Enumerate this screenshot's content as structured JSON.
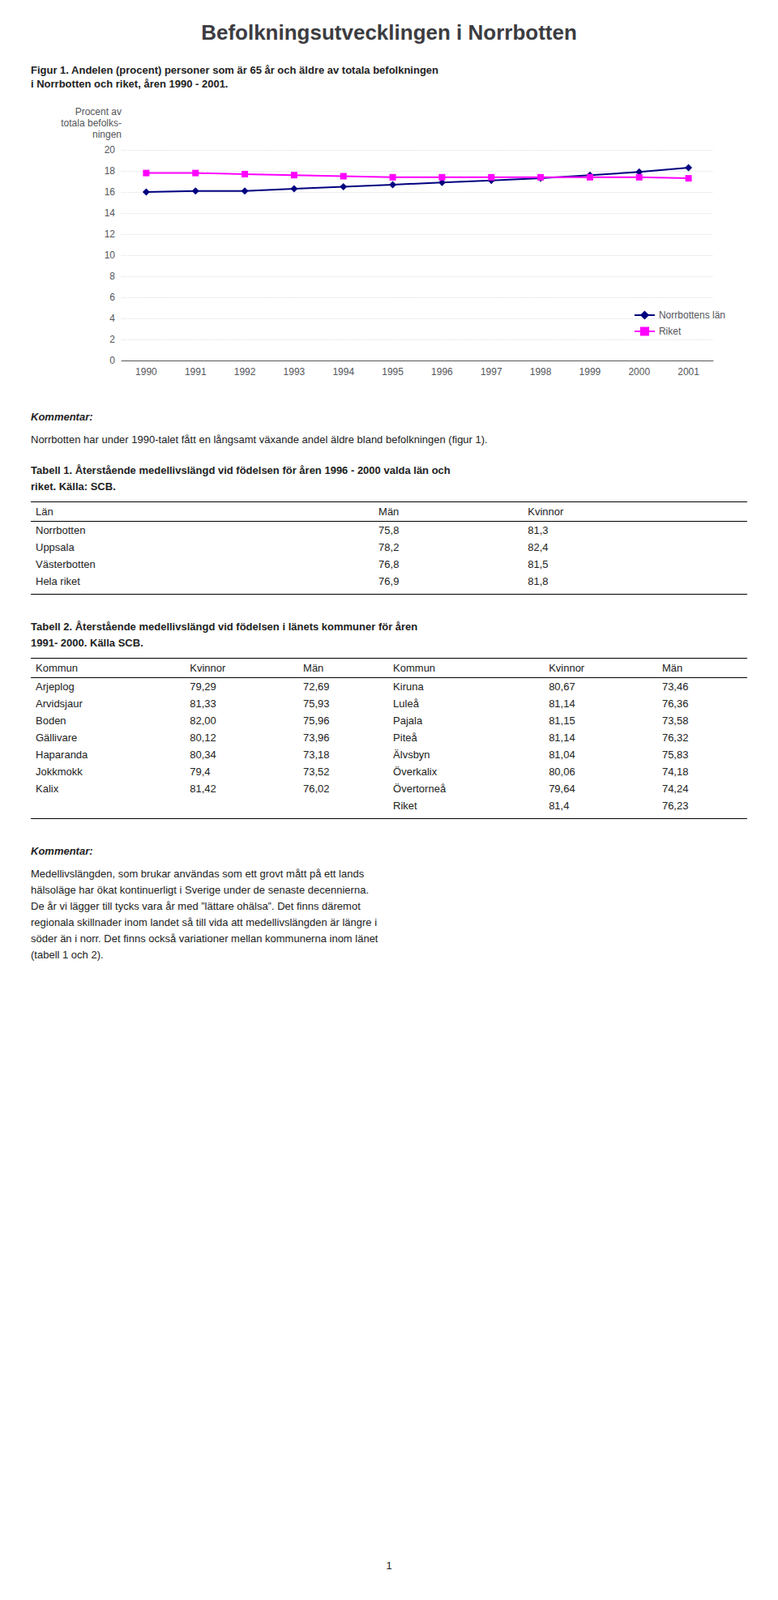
{
  "chart_data": {
    "type": "line",
    "title": "Befolkningsutvecklingen i Norrbotten",
    "ylabel": "Procent av\ntotala befolks-\nningen",
    "categories": [
      "1990",
      "1991",
      "1992",
      "1993",
      "1994",
      "1995",
      "1996",
      "1997",
      "1998",
      "1999",
      "2000",
      "2001"
    ],
    "series": [
      {
        "name": "Norrbottens län",
        "color": "#000080",
        "marker": "diamond",
        "line_style": "solid",
        "values": [
          16.0,
          16.1,
          16.1,
          16.3,
          16.5,
          16.7,
          16.9,
          17.1,
          17.3,
          17.6,
          17.9,
          18.3
        ]
      },
      {
        "name": "Riket",
        "color": "#FF00FF",
        "marker": "square",
        "line_style": "solid",
        "values": [
          17.8,
          17.8,
          17.7,
          17.6,
          17.5,
          17.4,
          17.4,
          17.4,
          17.4,
          17.4,
          17.4,
          17.3
        ]
      }
    ],
    "ylim": [
      0,
      20
    ],
    "yticks": [
      0,
      2,
      4,
      6,
      8,
      10,
      12,
      14,
      16,
      18,
      20
    ],
    "grid": true,
    "legend": "lower right",
    "annotations": [
      "Figur 1. Andelen (procent) personer som  är 65 år och äldre av totala befolkningen\ni Norrbotten och riket, åren 1990 - 2001.",
      "Kommentar:",
      "Norrbotten har under 1990-talet fått en långsamt växande andel äldre bland befolkningen (figur 1).",
      "Tabell 1. Återstående medellivslängd vid födelsen för åren 1996 - 2000 valda län och\nriket. Källa: SCB.",
      [
        [
          "Län",
          "Män",
          "Kvinnor"
        ],
        [
          "Norrbotten",
          "75,8",
          "81,3"
        ],
        [
          "Uppsala",
          "78,2",
          "82,4"
        ],
        [
          "Västerbotten",
          "76,8",
          "81,5"
        ],
        [
          "Hela riket",
          "76,9",
          "81,8"
        ]
      ],
      "Tabell 2. Återstående medellivslängd vid födelsen i länets kommuner för åren\n1991- 2000. Källa SCB.",
      [
        [
          "Kommun",
          "Kvinnor",
          "Män",
          "Kommun",
          "Kvinnor",
          "Män"
        ],
        [
          "Arjeplog",
          "79,29",
          "72,69",
          "Kiruna",
          "80,67",
          "73,46"
        ],
        [
          "Arvidsjaur",
          "81,33",
          "75,93",
          "Luleå",
          "81,14",
          "76,36"
        ],
        [
          "Boden",
          "82,00",
          "75,96",
          "Pajala",
          "81,15",
          "73,58"
        ],
        [
          "Gällivare",
          "80,12",
          "73,96",
          "Piteå",
          "81,14",
          "76,32"
        ],
        [
          "Haparanda",
          "80,34",
          "73,18",
          "Älvsbyn",
          "81,04",
          "75,83"
        ],
        [
          "Jokkmokk",
          "79,4",
          "73,52",
          "Överkalix",
          "80,06",
          "74,18"
        ],
        [
          "Kalix",
          "81,42",
          "76,02",
          "Övertorneå",
          "79,64",
          "74,24"
        ],
        [
          null,
          null,
          null,
          "Riket",
          "81,4",
          "76,23"
        ]
      ],
      "Kommentar:",
      "Medellivslängden, som brukar användas som ett grovt mått på ett lands\nhälsoläge har ökat kontinuerligt i Sverige under de senaste decennierna.\nDe år vi lägger till tycks vara år med ”lättare ohälsa”. Det finns däremot\nregionala skillnader inom landet så till vida att medellivslängden är längre i\nsöder än i norr. Det finns också variationer mellan kommunerna inom länet\n(tabell 1 och 2).",
      "1"
    ]
  }
}
